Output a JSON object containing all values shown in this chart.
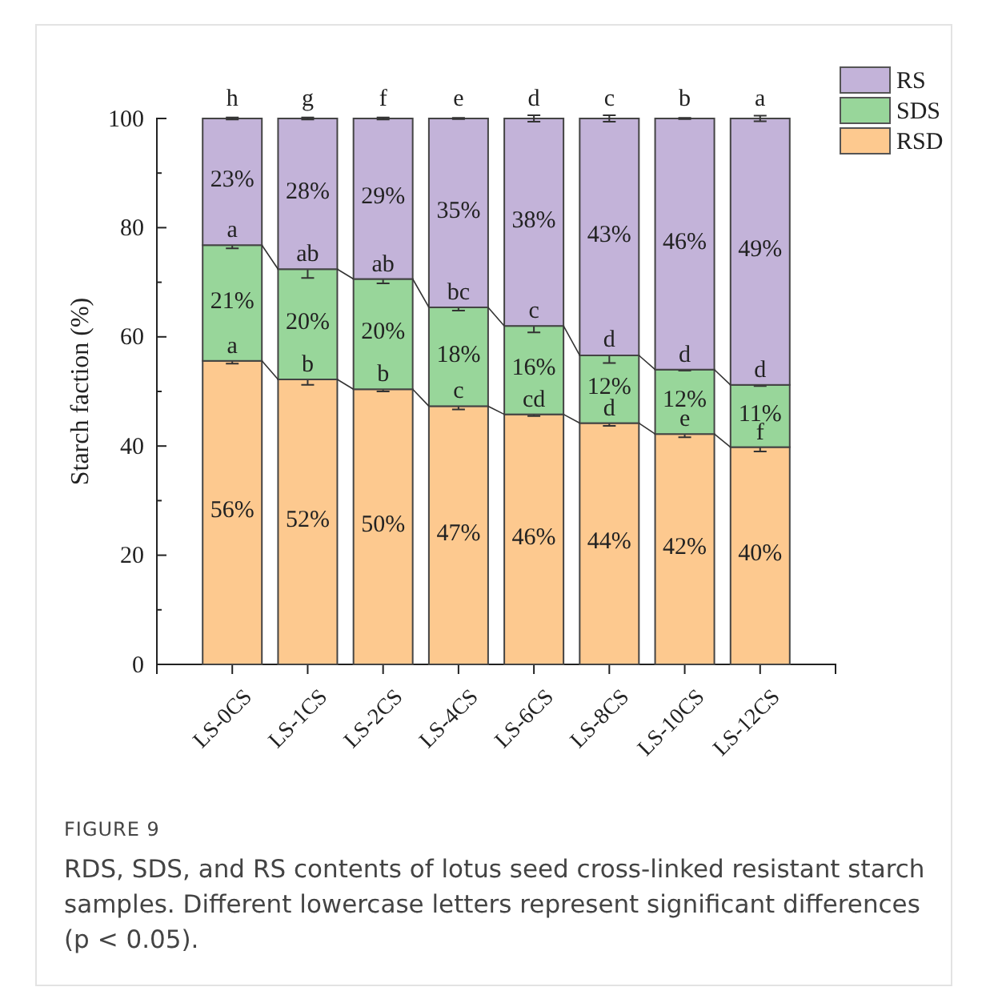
{
  "chart_data": {
    "type": "bar",
    "stacked": true,
    "ylabel": "Starch faction (%)",
    "categories": [
      "LS-0CS",
      "LS-1CS",
      "LS-2CS",
      "LS-4CS",
      "LS-6CS",
      "LS-8CS",
      "LS-10CS",
      "LS-12CS"
    ],
    "series": [
      {
        "name": "RSD",
        "color": "#fdc98f",
        "values": [
          55.6,
          52.2,
          50.4,
          47.3,
          45.8,
          44.2,
          42.2,
          39.8
        ],
        "errors": [
          0.5,
          1.0,
          0.4,
          0.6,
          0.3,
          0.5,
          0.6,
          0.8
        ],
        "value_labels": [
          "56%",
          "52%",
          "50%",
          "47%",
          "46%",
          "44%",
          "42%",
          "40%"
        ]
      },
      {
        "name": "SDS",
        "color": "#98d69a",
        "values": [
          21.2,
          20.2,
          20.2,
          18.1,
          16.2,
          12.4,
          11.8,
          11.4
        ],
        "errors": [
          0.6,
          1.6,
          0.8,
          0.6,
          1.2,
          1.4,
          0.2,
          0.2
        ],
        "value_labels": [
          "21%",
          "20%",
          "20%",
          "18%",
          "16%",
          "12%",
          "12%",
          "11%"
        ]
      },
      {
        "name": "RS",
        "color": "#c3b3d9",
        "values": [
          23.2,
          27.6,
          29.4,
          34.6,
          38.0,
          43.4,
          46.0,
          48.8
        ],
        "errors": [
          0.2,
          0.2,
          0.2,
          0.1,
          0.6,
          0.6,
          0.1,
          0.5
        ],
        "value_labels": [
          "23%",
          "28%",
          "29%",
          "35%",
          "38%",
          "43%",
          "46%",
          "49%"
        ]
      }
    ],
    "ylim": [
      0,
      100
    ],
    "yticks": [
      0,
      20,
      40,
      60,
      80,
      100
    ],
    "legend": "top right",
    "annotations": [
      {
        "text": "a",
        "x": "LS-0CS",
        "y": 55.6
      },
      {
        "text": "b",
        "x": "LS-1CS",
        "y": 52.2
      },
      {
        "text": "b",
        "x": "LS-2CS",
        "y": 50.4
      },
      {
        "text": "c",
        "x": "LS-4CS",
        "y": 47.3
      },
      {
        "text": "cd",
        "x": "LS-6CS",
        "y": 45.8
      },
      {
        "text": "d",
        "x": "LS-8CS",
        "y": 44.2
      },
      {
        "text": "e",
        "x": "LS-10CS",
        "y": 42.2
      },
      {
        "text": "f",
        "x": "LS-12CS",
        "y": 39.8
      },
      {
        "text": "a",
        "x": "LS-0CS",
        "y": 76.8
      },
      {
        "text": "ab",
        "x": "LS-1CS",
        "y": 72.4
      },
      {
        "text": "ab",
        "x": "LS-2CS",
        "y": 70.6
      },
      {
        "text": "bc",
        "x": "LS-4CS",
        "y": 65.4
      },
      {
        "text": "c",
        "x": "LS-6CS",
        "y": 62.0
      },
      {
        "text": "d",
        "x": "LS-8CS",
        "y": 56.8
      },
      {
        "text": "d",
        "x": "LS-10CS",
        "y": 54.0
      },
      {
        "text": "d",
        "x": "LS-12CS",
        "y": 51.2
      },
      {
        "text": "h",
        "x": "LS-0CS",
        "y": 100
      },
      {
        "text": "g",
        "x": "LS-1CS",
        "y": 100
      },
      {
        "text": "f",
        "x": "LS-2CS",
        "y": 100
      },
      {
        "text": "e",
        "x": "LS-4CS",
        "y": 100
      },
      {
        "text": "d",
        "x": "LS-6CS",
        "y": 100
      },
      {
        "text": "c",
        "x": "LS-8CS",
        "y": 100
      },
      {
        "text": "b",
        "x": "LS-10CS",
        "y": 100
      },
      {
        "text": "a",
        "x": "LS-12CS",
        "y": 100
      },
      "FIGURE 9",
      "RDS, SDS, and RS contents of lotus seed cross-linked resistant starch samples. Different lowercase letters represent significant differences (p < 0.05)."
    ]
  }
}
